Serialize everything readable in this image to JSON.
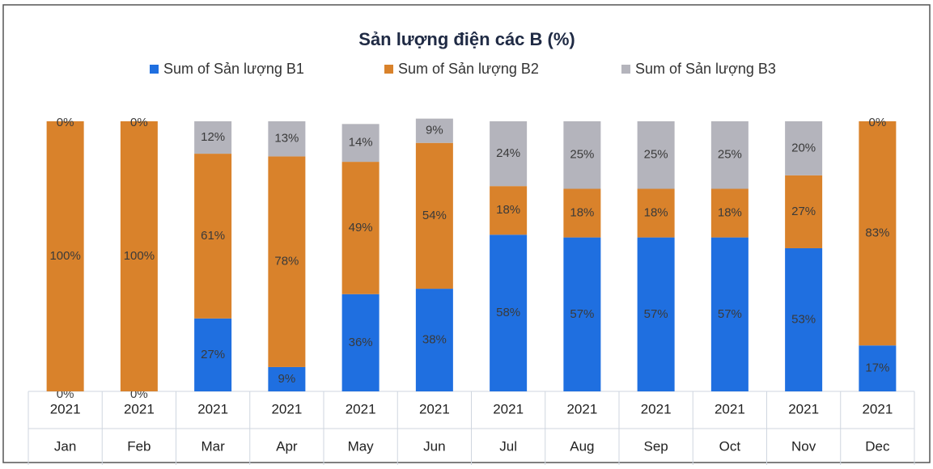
{
  "chart_data": {
    "type": "stacked_bar",
    "title": "Sản lượng điện các B (%)",
    "categories": [
      "Jan",
      "Feb",
      "Mar",
      "Apr",
      "May",
      "Jun",
      "Jul",
      "Aug",
      "Sep",
      "Oct",
      "Nov",
      "Dec"
    ],
    "category_groups": [
      "2021",
      "2021",
      "2021",
      "2021",
      "2021",
      "2021",
      "2021",
      "2021",
      "2021",
      "2021",
      "2021",
      "2021"
    ],
    "ylim": [
      0,
      100
    ],
    "series": [
      {
        "name": "Sum of Sản lượng B1",
        "color": "#1f6fe0",
        "values": [
          0,
          0,
          27,
          9,
          36,
          38,
          58,
          57,
          57,
          57,
          53,
          17
        ],
        "value_labels": [
          "0%",
          "0%",
          "27%",
          "9%",
          "36%",
          "38%",
          "58%",
          "57%",
          "57%",
          "57%",
          "53%",
          "17%"
        ]
      },
      {
        "name": "Sum of Sản lượng B2",
        "color": "#d9822b",
        "values": [
          100,
          100,
          61,
          78,
          49,
          54,
          18,
          18,
          18,
          18,
          27,
          83
        ],
        "value_labels": [
          "100%",
          "100%",
          "61%",
          "78%",
          "49%",
          "54%",
          "18%",
          "18%",
          "18%",
          "18%",
          "27%",
          "83%"
        ]
      },
      {
        "name": "Sum of Sản lượng B3",
        "color": "#b4b4bc",
        "values": [
          0,
          0,
          12,
          13,
          14,
          9,
          24,
          25,
          25,
          25,
          20,
          0
        ],
        "value_labels": [
          "0%",
          "0%",
          "12%",
          "13%",
          "14%",
          "9%",
          "24%",
          "25%",
          "25%",
          "25%",
          "20%",
          "0%"
        ]
      }
    ]
  }
}
